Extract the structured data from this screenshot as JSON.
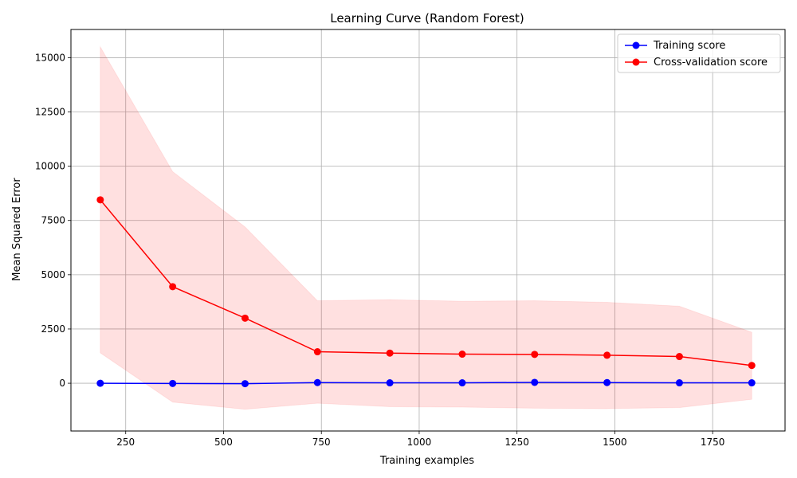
{
  "chart_data": {
    "type": "line",
    "title": "Learning Curve (Random Forest)",
    "xlabel": "Training examples",
    "ylabel": "Mean Squared Error",
    "xlim": [
      110,
      1935
    ],
    "ylim": [
      -2200,
      16300
    ],
    "xticks": [
      250,
      500,
      750,
      1000,
      1250,
      1500,
      1750
    ],
    "yticks": [
      0,
      2500,
      5000,
      7500,
      10000,
      12500,
      15000
    ],
    "grid": true,
    "legend_position": "top-right",
    "x": [
      185,
      370,
      555,
      740,
      925,
      1110,
      1295,
      1480,
      1665,
      1850
    ],
    "series": [
      {
        "name": "Training score",
        "color": "#0000ff",
        "marker": "circle",
        "values": [
          0,
          -10,
          -20,
          30,
          20,
          20,
          40,
          30,
          20,
          20
        ]
      },
      {
        "name": "Cross-validation score",
        "color": "#ff0000",
        "marker": "circle",
        "values": [
          8450,
          4450,
          3000,
          1450,
          1390,
          1340,
          1330,
          1290,
          1230,
          820
        ],
        "band": {
          "color": "#ff0000",
          "opacity": 0.12,
          "upper": [
            15500,
            9750,
            7200,
            3800,
            3850,
            3780,
            3800,
            3730,
            3550,
            2350
          ],
          "lower": [
            1400,
            -870,
            -1200,
            -920,
            -1080,
            -1100,
            -1150,
            -1170,
            -1120,
            -740
          ]
        }
      }
    ]
  }
}
